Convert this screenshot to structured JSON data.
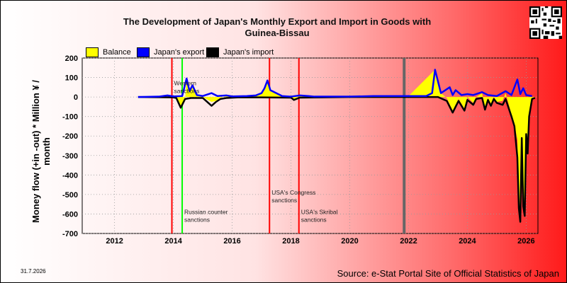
{
  "title_line1": "The Development of Japan's Monthly Export and Import in Goods with",
  "title_line2": "Guinea-Bissau",
  "ylabel": "Money flow (+in -out) * Million ¥ / month",
  "date_stamp": "31.7.2026",
  "source": "Source: e-Stat Portal Site of Official Statistics of Japan",
  "legend": [
    {
      "label": "Balance",
      "color": "#ffff00"
    },
    {
      "label": "Japan's export",
      "color": "#0000ff"
    },
    {
      "label": "Japan's import",
      "color": "#000000"
    }
  ],
  "qr_icon": "qr-code-icon",
  "chart_data": {
    "type": "line",
    "title": "The Development of Japan's Monthly Export and Import in Goods with Guinea-Bissau",
    "ylabel": "Money flow (+in -out) * Million ¥ / month",
    "xlim": [
      2010.9,
      2026.4
    ],
    "ylim": [
      -700,
      200
    ],
    "xticks": [
      2012,
      2014,
      2016,
      2018,
      2020,
      2022,
      2024,
      2026
    ],
    "yticks": [
      200,
      100,
      0,
      -100,
      -200,
      -300,
      -400,
      -500,
      -600,
      -700
    ],
    "grid": true,
    "legend_position": "top-left",
    "series": [
      {
        "name": "Japan's export",
        "color": "#0000ff",
        "points": [
          [
            2012.8,
            0
          ],
          [
            2013.5,
            2
          ],
          [
            2013.8,
            8
          ],
          [
            2014.0,
            3
          ],
          [
            2014.3,
            5
          ],
          [
            2014.45,
            95
          ],
          [
            2014.55,
            30
          ],
          [
            2014.65,
            60
          ],
          [
            2014.8,
            10
          ],
          [
            2015.0,
            5
          ],
          [
            2015.3,
            20
          ],
          [
            2015.5,
            5
          ],
          [
            2015.8,
            8
          ],
          [
            2016.0,
            3
          ],
          [
            2016.5,
            5
          ],
          [
            2016.8,
            8
          ],
          [
            2017.0,
            20
          ],
          [
            2017.1,
            45
          ],
          [
            2017.2,
            85
          ],
          [
            2017.3,
            35
          ],
          [
            2017.5,
            20
          ],
          [
            2017.7,
            5
          ],
          [
            2018.0,
            2
          ],
          [
            2018.3,
            8
          ],
          [
            2018.6,
            5
          ],
          [
            2018.8,
            2
          ],
          [
            2019.0,
            2
          ],
          [
            2020.0,
            2
          ],
          [
            2020.8,
            5
          ],
          [
            2021.5,
            5
          ],
          [
            2022.0,
            5
          ],
          [
            2022.6,
            5
          ],
          [
            2022.8,
            20
          ],
          [
            2022.9,
            140
          ],
          [
            2023.0,
            80
          ],
          [
            2023.1,
            20
          ],
          [
            2023.4,
            50
          ],
          [
            2023.5,
            10
          ],
          [
            2023.6,
            35
          ],
          [
            2023.8,
            10
          ],
          [
            2024.0,
            15
          ],
          [
            2024.2,
            10
          ],
          [
            2024.5,
            25
          ],
          [
            2024.7,
            10
          ],
          [
            2025.0,
            5
          ],
          [
            2025.3,
            30
          ],
          [
            2025.5,
            10
          ],
          [
            2025.7,
            90
          ],
          [
            2025.8,
            15
          ],
          [
            2025.9,
            45
          ],
          [
            2026.0,
            10
          ],
          [
            2026.2,
            5
          ]
        ]
      },
      {
        "name": "Japan's import",
        "color": "#000000",
        "points": [
          [
            2012.8,
            0
          ],
          [
            2014.0,
            -2
          ],
          [
            2014.1,
            -5
          ],
          [
            2014.25,
            -55
          ],
          [
            2014.4,
            -10
          ],
          [
            2014.6,
            -5
          ],
          [
            2015.0,
            -5
          ],
          [
            2015.3,
            -45
          ],
          [
            2015.45,
            -25
          ],
          [
            2015.6,
            -10
          ],
          [
            2015.8,
            -5
          ],
          [
            2016.2,
            -2
          ],
          [
            2017.0,
            -2
          ],
          [
            2018.0,
            -3
          ],
          [
            2018.1,
            -15
          ],
          [
            2018.3,
            -3
          ],
          [
            2020.0,
            0
          ],
          [
            2022.0,
            0
          ],
          [
            2023.0,
            0
          ],
          [
            2023.3,
            -20
          ],
          [
            2023.5,
            -80
          ],
          [
            2023.7,
            -20
          ],
          [
            2023.9,
            -70
          ],
          [
            2024.0,
            -15
          ],
          [
            2024.2,
            -40
          ],
          [
            2024.3,
            -10
          ],
          [
            2024.5,
            -5
          ],
          [
            2024.6,
            -65
          ],
          [
            2024.7,
            -15
          ],
          [
            2024.8,
            -45
          ],
          [
            2024.9,
            -10
          ],
          [
            2025.0,
            -30
          ],
          [
            2025.2,
            -40
          ],
          [
            2025.3,
            -10
          ],
          [
            2025.5,
            -100
          ],
          [
            2025.6,
            -150
          ],
          [
            2025.7,
            -310
          ],
          [
            2025.75,
            -570
          ],
          [
            2025.8,
            -640
          ],
          [
            2025.85,
            -210
          ],
          [
            2025.9,
            -560
          ],
          [
            2025.95,
            -610
          ],
          [
            2026.0,
            -190
          ],
          [
            2026.05,
            -290
          ],
          [
            2026.1,
            -100
          ],
          [
            2026.2,
            -10
          ],
          [
            2026.3,
            -5
          ]
        ]
      },
      {
        "name": "Balance",
        "color": "#ffff00",
        "points": [
          [
            2012.8,
            0
          ],
          [
            2014.0,
            0
          ],
          [
            2014.1,
            -5
          ],
          [
            2014.25,
            -55
          ],
          [
            2014.4,
            -10
          ],
          [
            2014.45,
            90
          ],
          [
            2014.55,
            25
          ],
          [
            2014.65,
            55
          ],
          [
            2014.8,
            5
          ],
          [
            2015.0,
            0
          ],
          [
            2015.3,
            -25
          ],
          [
            2015.45,
            -20
          ],
          [
            2015.6,
            -5
          ],
          [
            2015.8,
            5
          ],
          [
            2016.5,
            3
          ],
          [
            2017.0,
            18
          ],
          [
            2017.2,
            83
          ],
          [
            2017.3,
            33
          ],
          [
            2017.5,
            18
          ],
          [
            2017.7,
            3
          ],
          [
            2018.0,
            0
          ],
          [
            2018.1,
            -12
          ],
          [
            2018.3,
            5
          ],
          [
            2018.6,
            5
          ],
          [
            2019.0,
            2
          ],
          [
            2020.0,
            2
          ],
          [
            2022.0,
            5
          ],
          [
            2022.9,
            140
          ],
          [
            2023.0,
            80
          ],
          [
            2023.1,
            20
          ],
          [
            2023.3,
            -5
          ],
          [
            2023.5,
            -70
          ],
          [
            2023.7,
            -10
          ],
          [
            2023.9,
            -60
          ],
          [
            2024.0,
            0
          ],
          [
            2024.2,
            -30
          ],
          [
            2024.3,
            0
          ],
          [
            2024.5,
            20
          ],
          [
            2024.6,
            -55
          ],
          [
            2024.7,
            -5
          ],
          [
            2024.8,
            -35
          ],
          [
            2024.9,
            0
          ],
          [
            2025.0,
            -25
          ],
          [
            2025.2,
            -20
          ],
          [
            2025.3,
            20
          ],
          [
            2025.5,
            -90
          ],
          [
            2025.6,
            -140
          ],
          [
            2025.7,
            -220
          ],
          [
            2025.75,
            -565
          ],
          [
            2025.8,
            -635
          ],
          [
            2025.85,
            -200
          ],
          [
            2025.9,
            -520
          ],
          [
            2025.95,
            -600
          ],
          [
            2026.0,
            -180
          ],
          [
            2026.05,
            -280
          ],
          [
            2026.1,
            -90
          ],
          [
            2026.2,
            -5
          ],
          [
            2026.3,
            0
          ]
        ]
      }
    ],
    "events": [
      {
        "x": 2013.95,
        "color": "#ff0000",
        "label": "Western sanctions",
        "label_y": 60
      },
      {
        "x": 2014.3,
        "color": "#00ff00",
        "label": "Russian counter sanctions",
        "label_y": -600,
        "label2": "sanctions"
      },
      {
        "x": 2017.27,
        "color": "#ff0000",
        "label": "USA's Congress sanctions",
        "label_y": -500
      },
      {
        "x": 2018.27,
        "color": "#ff0000",
        "label": "USA's Skribal sanctions",
        "label_y": -600
      },
      {
        "x": 2021.85,
        "color": "#666666",
        "label": "",
        "label_y": 0
      }
    ]
  }
}
